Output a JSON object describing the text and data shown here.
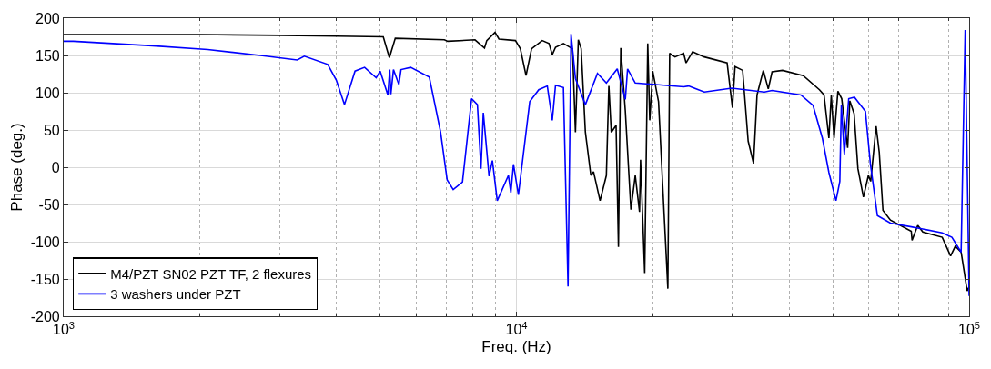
{
  "chart_data": {
    "type": "line",
    "xlabel": "Freq. (Hz)",
    "ylabel": "Phase (deg.)",
    "log": "x",
    "xlim": [
      1000,
      100000
    ],
    "ylim": [
      -200,
      200
    ],
    "xticks": [
      {
        "value": 1000,
        "label": "10$^{3}$"
      },
      {
        "value": 10000,
        "label": "10$^{4}$"
      },
      {
        "value": 100000,
        "label": "10$^{5}$"
      }
    ],
    "yticks": [
      -200,
      -150,
      -100,
      -50,
      0,
      50,
      100,
      150,
      200
    ],
    "grid": true,
    "legend": "bottom left",
    "marker": "none",
    "line_style": "solid",
    "series": [
      {
        "name": "M4/PZT SN02 PZT TF, 2 flexures",
        "color": "#000000",
        "x": [
          1000,
          1050,
          2000,
          3000,
          4000,
          5080,
          5240,
          5400,
          6930,
          7050,
          8100,
          8500,
          8600,
          8970,
          9150,
          9950,
          10200,
          10500,
          10800,
          11400,
          11800,
          12000,
          12200,
          12700,
          13300,
          13500,
          13700,
          13900,
          14200,
          14600,
          14800,
          15300,
          15800,
          16000,
          16200,
          16600,
          16800,
          17000,
          17400,
          17900,
          18300,
          18700,
          18800,
          19200,
          19500,
          19700,
          20000,
          20600,
          21600,
          21800,
          22400,
          23400,
          23700,
          24500,
          26000,
          29200,
          30000,
          30400,
          31600,
          32500,
          33400,
          34000,
          35100,
          36000,
          36700,
          38700,
          43000,
          46700,
          47800,
          49000,
          49600,
          50300,
          51300,
          52300,
          53900,
          54500,
          55700,
          56800,
          58400,
          59900,
          60600,
          62300,
          63300,
          64500,
          67000,
          74500,
          74800,
          77000,
          79000,
          87200,
          91000,
          93200,
          96000,
          99000,
          100000
        ],
        "values": [
          178,
          178,
          178,
          177,
          176,
          175,
          147,
          173,
          171,
          169,
          171,
          160,
          170,
          181,
          172,
          170,
          159,
          123,
          159,
          170,
          166,
          151,
          161,
          166,
          159,
          47,
          171,
          159,
          47,
          -11,
          -6,
          -45,
          -11,
          109,
          47,
          56,
          -107,
          160,
          75,
          -57,
          -11,
          -60,
          10,
          -142,
          166,
          63,
          129,
          88,
          -163,
          153,
          148,
          153,
          140,
          155,
          148,
          140,
          80,
          135,
          130,
          35,
          5,
          97,
          130,
          105,
          128,
          130,
          123,
          104,
          97,
          39,
          97,
          39,
          102,
          92,
          26,
          89,
          72,
          -2,
          -40,
          -11,
          -19,
          55,
          20,
          -58,
          -71,
          -86,
          -98,
          -78,
          -87,
          -94,
          -119,
          -106,
          -114,
          -166,
          -160
        ]
      },
      {
        "name": "3 washers under PZT",
        "color": "#0000ff",
        "x": [
          1000,
          1050,
          1570,
          2080,
          2720,
          3280,
          3400,
          3830,
          4000,
          4170,
          4400,
          4620,
          4900,
          5000,
          5200,
          5250,
          5280,
          5350,
          5500,
          5560,
          5840,
          6420,
          6800,
          7030,
          7250,
          7600,
          7960,
          8200,
          8350,
          8450,
          8700,
          8850,
          9070,
          9600,
          9720,
          9850,
          10100,
          10700,
          11200,
          11700,
          12000,
          12200,
          12700,
          13000,
          13200,
          13500,
          14200,
          15100,
          15800,
          16700,
          17400,
          17600,
          18300,
          20300,
          23400,
          24000,
          26000,
          29900,
          35300,
          36700,
          42500,
          45200,
          47400,
          49000,
          50800,
          51800,
          52200,
          53000,
          54200,
          55800,
          59000,
          60500,
          62700,
          67000,
          74500,
          87200,
          91600,
          96000,
          98000,
          100000
        ],
        "values": [
          169,
          169,
          163,
          158,
          150,
          144,
          149,
          138,
          117,
          84,
          129,
          134,
          120,
          129,
          97,
          131,
          98,
          131,
          111,
          131,
          134,
          121,
          47,
          -17,
          -30,
          -20,
          92,
          84,
          -2,
          73,
          -12,
          9,
          -45,
          -11,
          -34,
          4,
          -37,
          88,
          104,
          109,
          63,
          110,
          107,
          -160,
          179,
          119,
          84,
          126,
          113,
          132,
          91,
          132,
          113,
          111,
          108,
          109,
          101,
          106,
          101,
          103,
          97,
          83,
          39,
          -7,
          -45,
          -19,
          83,
          17,
          92,
          94,
          75,
          5,
          -65,
          -75,
          -80,
          -88,
          -94,
          -114,
          184,
          -173
        ]
      }
    ]
  }
}
